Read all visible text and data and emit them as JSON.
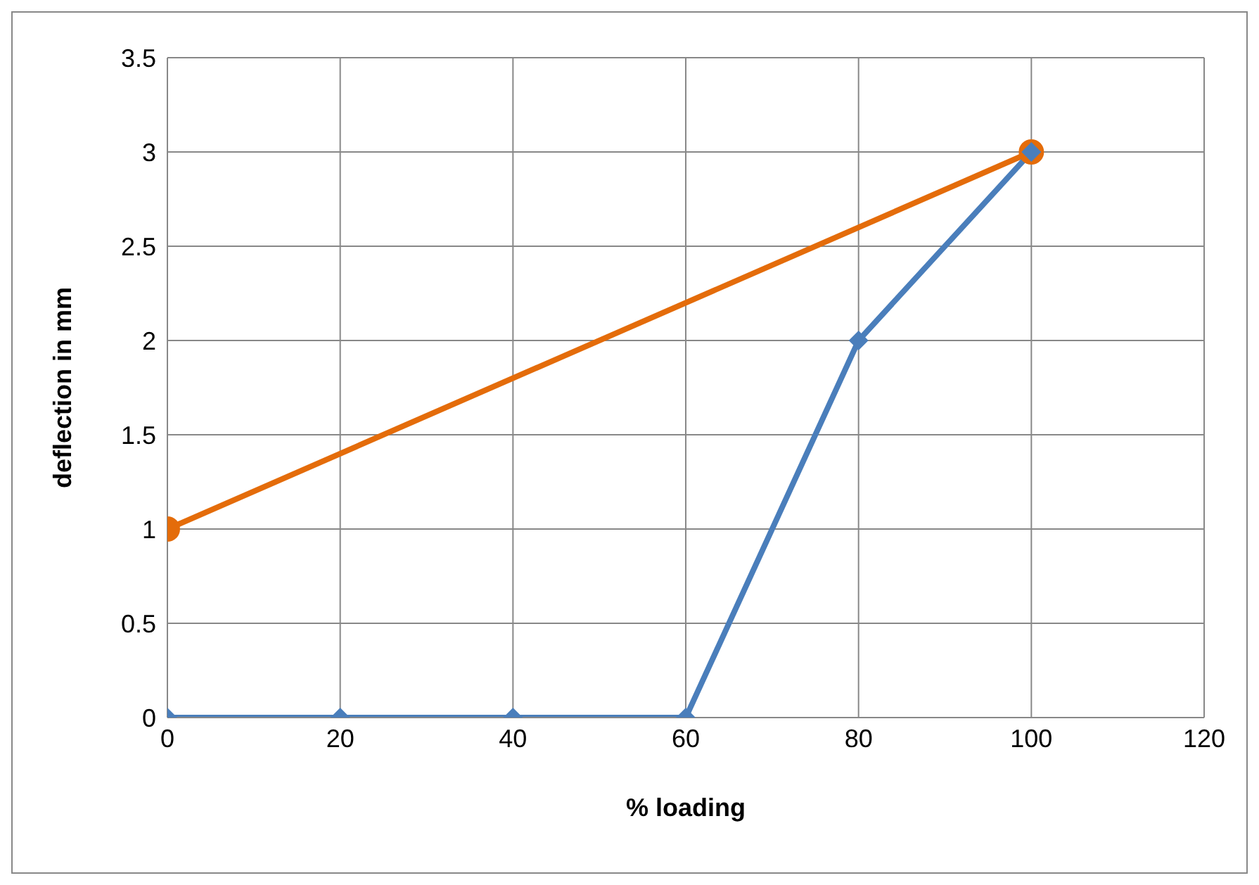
{
  "chart_data": {
    "type": "line",
    "xlabel": "% loading",
    "ylabel": "deflection in mm",
    "xlim": [
      0,
      120
    ],
    "xticks": [
      0,
      20,
      40,
      60,
      80,
      100,
      120
    ],
    "ylim": [
      0,
      3.5
    ],
    "yticks": [
      0,
      0.5,
      1,
      1.5,
      2,
      2.5,
      3,
      3.5
    ],
    "grid": true,
    "legend": false,
    "line_style": "solid",
    "series": [
      {
        "color": "#e46c0a",
        "x": [
          0,
          100
        ],
        "values": [
          1,
          3
        ],
        "marker": "circle"
      },
      {
        "color": "#4a7ebb",
        "x": [
          0,
          20,
          40,
          60,
          80,
          100
        ],
        "values": [
          0,
          0,
          0,
          0,
          2,
          3
        ],
        "marker": "diamond"
      }
    ]
  }
}
